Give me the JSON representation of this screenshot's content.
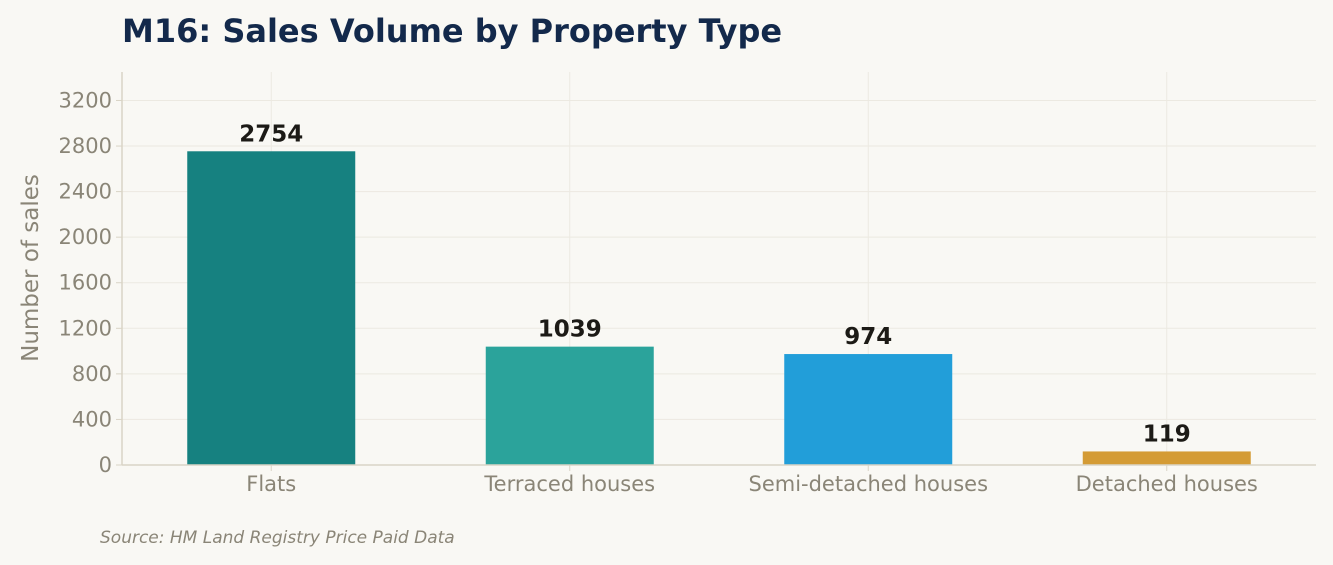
{
  "chart_data": {
    "type": "bar",
    "title": "M16: Sales Volume by Property Type",
    "xlabel": "",
    "ylabel": "Number of sales",
    "categories": [
      "Flats",
      "Terraced houses",
      "Semi-detached houses",
      "Detached houses"
    ],
    "values": [
      2754,
      1039,
      974,
      119
    ],
    "data_labels": [
      "2754",
      "1039",
      "974",
      "119"
    ],
    "colors": [
      "#168180",
      "#2ba39b",
      "#229ed9",
      "#d49b35"
    ],
    "ylim": [
      0,
      3450
    ],
    "yticks": [
      0,
      400,
      800,
      1200,
      1600,
      2000,
      2400,
      2800,
      3200
    ],
    "ytick_labels": [
      "0",
      "400",
      "800",
      "1200",
      "1600",
      "2000",
      "2400",
      "2800",
      "3200"
    ],
    "grid": true,
    "legend": "none"
  },
  "footer": {
    "source": "Source: HM Land Registry Price Paid Data"
  }
}
